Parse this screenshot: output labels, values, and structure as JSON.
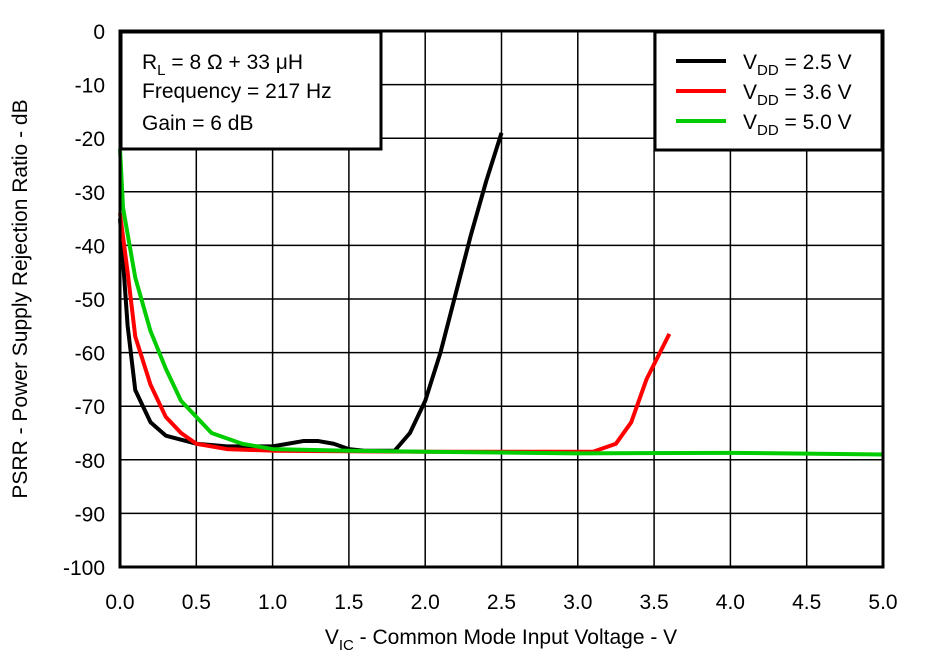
{
  "chart_data": {
    "type": "line",
    "xlabel": {
      "main": "V",
      "sub": "IC",
      "rest": " - Common Mode Input Voltage - V"
    },
    "ylabel": "PSRR - Power Supply Rejection Ratio - dB",
    "xlim": [
      0,
      5
    ],
    "ylim": [
      -100,
      0
    ],
    "grid": true,
    "x_ticks": [
      "0.0",
      "0.5",
      "1.0",
      "1.5",
      "2.0",
      "2.5",
      "3.0",
      "3.5",
      "4.0",
      "4.5",
      "5.0"
    ],
    "y_ticks": [
      "0",
      "-10",
      "-20",
      "-30",
      "-40",
      "-50",
      "-60",
      "-70",
      "-80",
      "-90",
      "-100"
    ],
    "annotation": {
      "line1": {
        "main": "R",
        "sub": "L",
        "rest": " = 8 Ω + 33 μH"
      },
      "line2": "Frequency = 217 Hz",
      "line3": "Gain = 6 dB"
    },
    "legend_placement": "top-right",
    "series": [
      {
        "name": "V_DD = 2.5 V",
        "label": {
          "main": "V",
          "sub": "DD",
          "rest": " = 2.5 V"
        },
        "color": "#000000",
        "x": [
          0,
          0.05,
          0.1,
          0.2,
          0.3,
          0.5,
          0.7,
          1.0,
          1.1,
          1.2,
          1.3,
          1.4,
          1.5,
          1.6,
          1.8,
          1.9,
          2.0,
          2.1,
          2.2,
          2.3,
          2.4,
          2.5
        ],
        "y": [
          -35,
          -55,
          -67,
          -73,
          -75.5,
          -77,
          -77.5,
          -77.5,
          -77,
          -76.5,
          -76.5,
          -77,
          -78,
          -78.3,
          -78.3,
          -75,
          -69,
          -60,
          -49,
          -38,
          -28,
          -19
        ]
      },
      {
        "name": "V_DD = 3.6 V",
        "label": {
          "main": "V",
          "sub": "DD",
          "rest": " = 3.6 V"
        },
        "color": "#ff0000",
        "x": [
          0,
          0.05,
          0.1,
          0.2,
          0.3,
          0.4,
          0.5,
          0.7,
          1.0,
          2.0,
          3.1,
          3.25,
          3.35,
          3.45,
          3.6
        ],
        "y": [
          -34,
          -45,
          -57,
          -66,
          -72,
          -75,
          -77,
          -78,
          -78.3,
          -78.5,
          -78.5,
          -77,
          -73,
          -65,
          -56.5
        ]
      },
      {
        "name": "V_DD = 5.0 V",
        "label": {
          "main": "V",
          "sub": "DD",
          "rest": " = 5.0 V"
        },
        "color": "#00cc00",
        "x": [
          0,
          0.02,
          0.1,
          0.2,
          0.3,
          0.4,
          0.5,
          0.6,
          0.8,
          1.0,
          1.5,
          2.0,
          3.0,
          4.0,
          5.0
        ],
        "y": [
          -22,
          -33,
          -46,
          -56,
          -63,
          -69,
          -72,
          -75,
          -77,
          -78,
          -78.3,
          -78.5,
          -78.8,
          -78.7,
          -79
        ]
      }
    ]
  }
}
